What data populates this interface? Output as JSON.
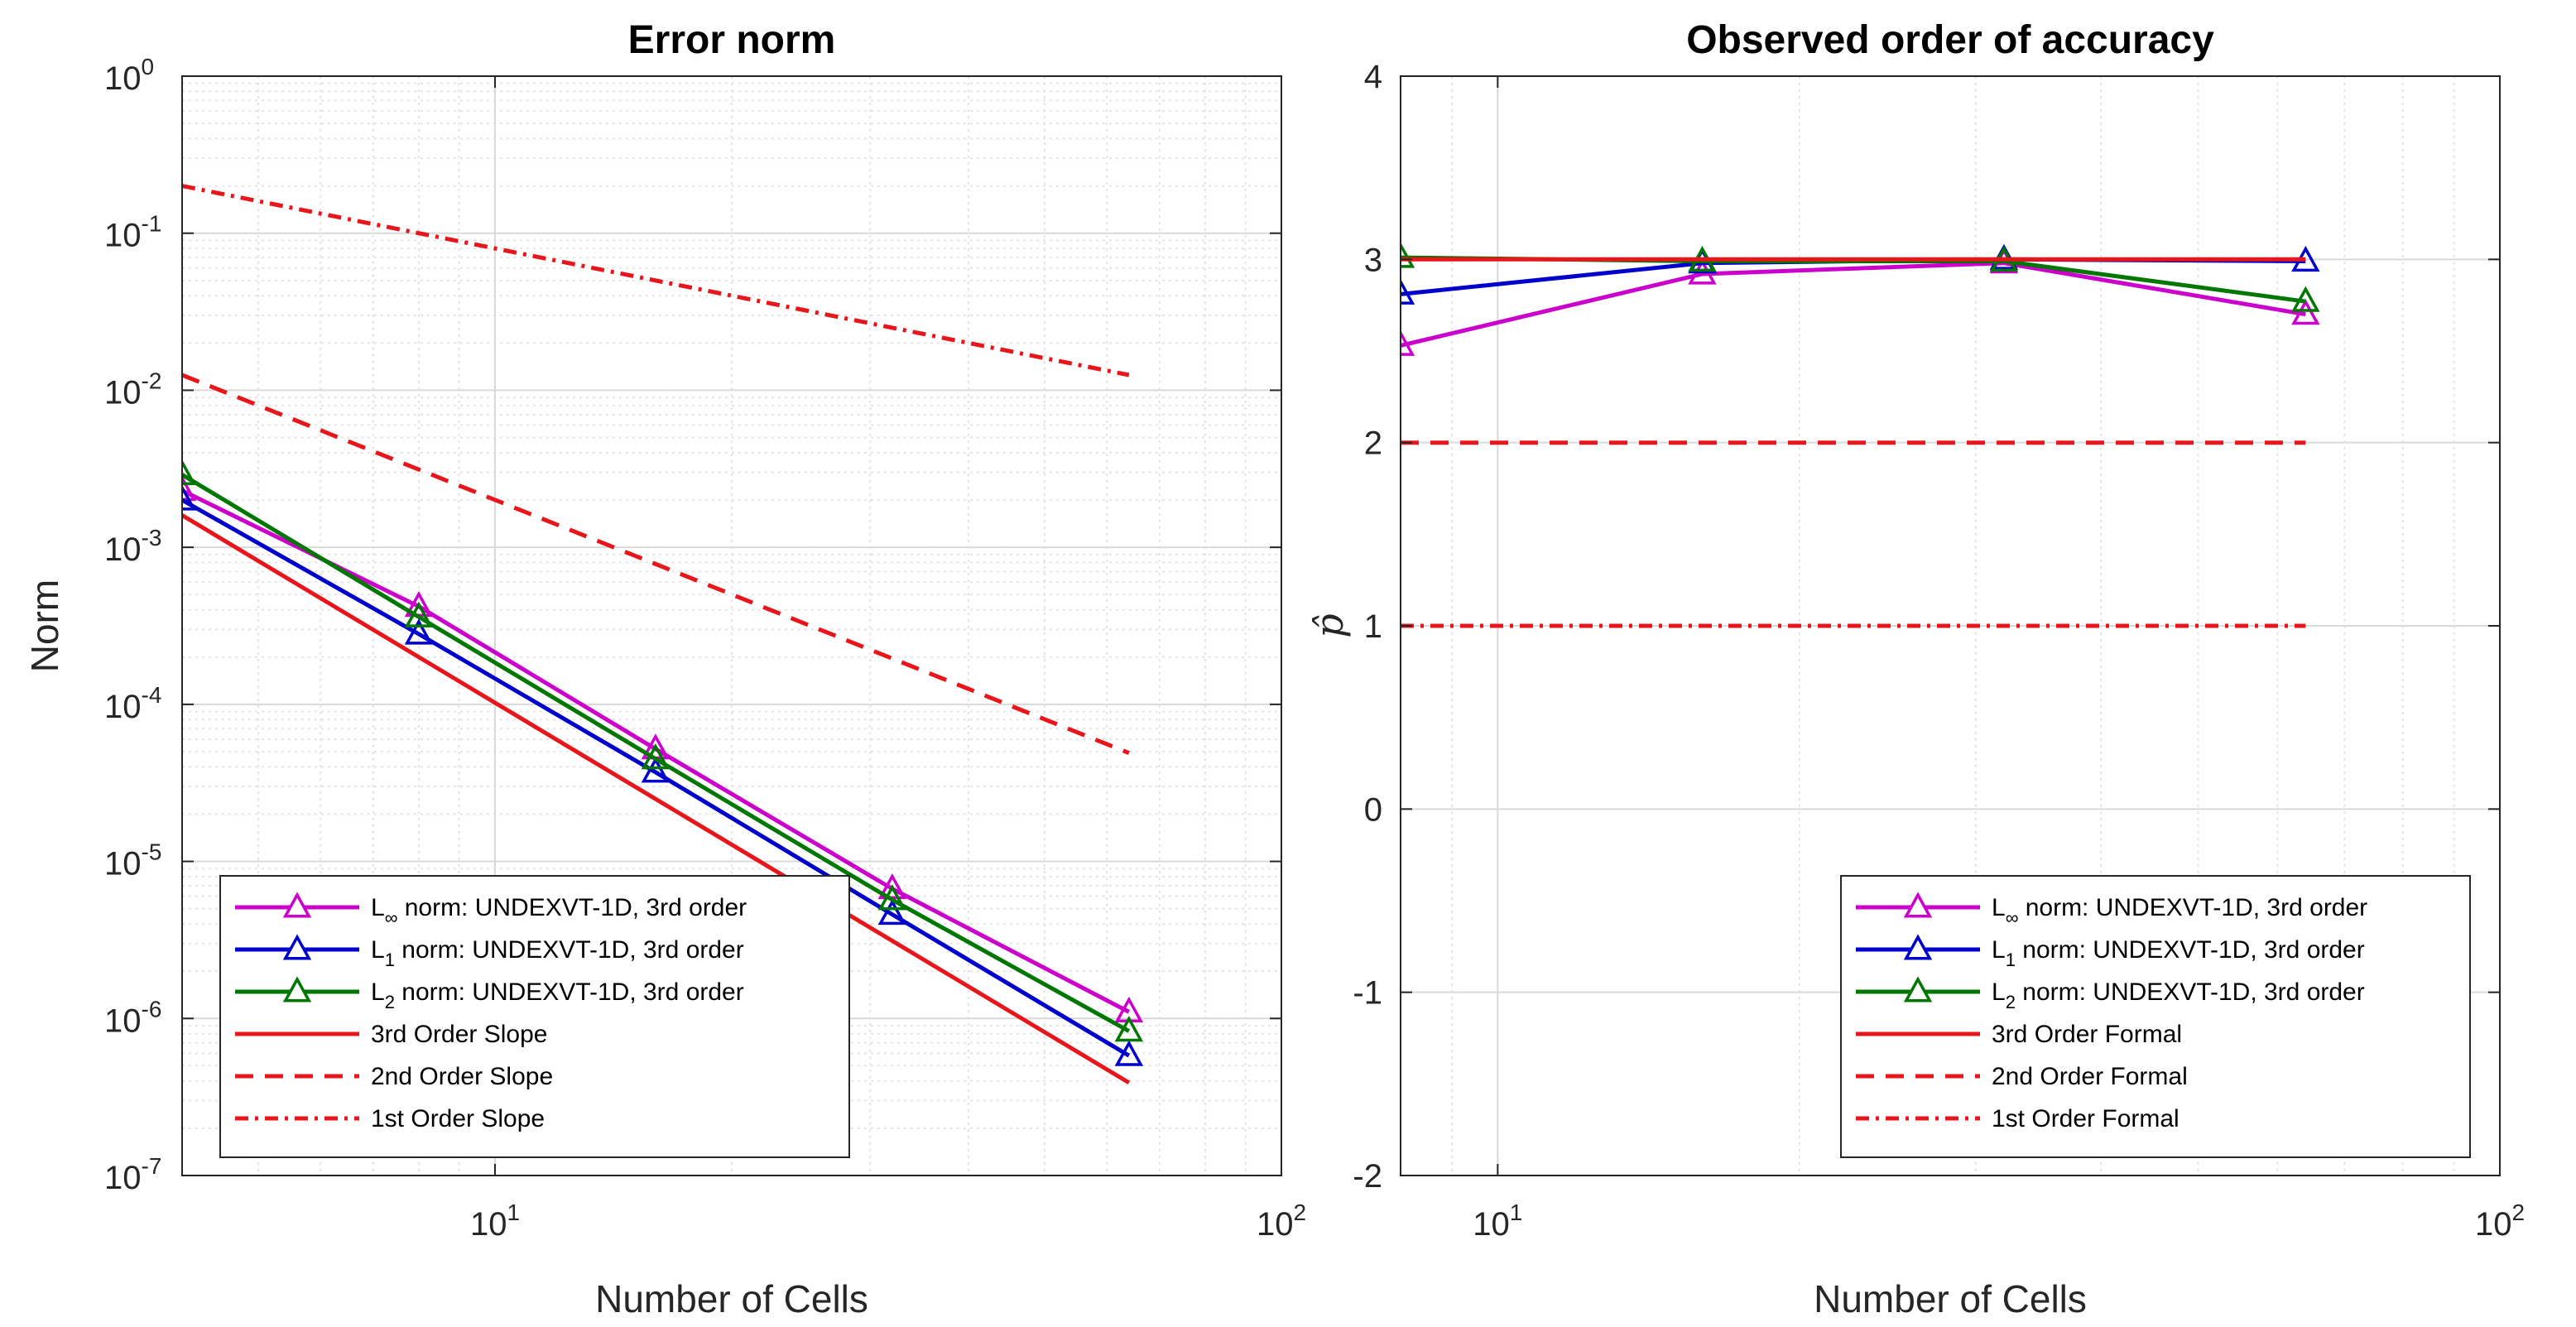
{
  "chart_data": [
    {
      "type": "line",
      "title": "Error norm",
      "xlabel": "Number of Cells",
      "ylabel": "Norm",
      "xscale": "log",
      "yscale": "log",
      "xlim": [
        4,
        100
      ],
      "ylim": [
        1e-07,
        1
      ],
      "grid": true,
      "minor_grid": true,
      "x_ticks": [
        {
          "value": 10,
          "base": "10",
          "exp": "1"
        },
        {
          "value": 100,
          "base": "10",
          "exp": "2"
        }
      ],
      "y_ticks": [
        {
          "value": 1e-07,
          "base": "10",
          "exp": "-7"
        },
        {
          "value": 1e-06,
          "base": "10",
          "exp": "-6"
        },
        {
          "value": 1e-05,
          "base": "10",
          "exp": "-5"
        },
        {
          "value": 0.0001,
          "base": "10",
          "exp": "-4"
        },
        {
          "value": 0.001,
          "base": "10",
          "exp": "-3"
        },
        {
          "value": 0.01,
          "base": "10",
          "exp": "-2"
        },
        {
          "value": 0.1,
          "base": "10",
          "exp": "-1"
        },
        {
          "value": 1,
          "base": "10",
          "exp": "0"
        }
      ],
      "legend_position": "bottom-left",
      "series": [
        {
          "name": "L∞ norm: UNDEXVT-1D, 3rd order",
          "label_main": "L",
          "label_sub": "∞",
          "label_rest": " norm: UNDEXVT-1D, 3rd order",
          "color": "#cc00cc",
          "dash": "solid",
          "marker": "triangle",
          "x": [
            4,
            8,
            16,
            32,
            64
          ],
          "y": [
            0.0023,
            0.00042,
            5.2e-05,
            6.7e-06,
            1.1e-06
          ]
        },
        {
          "name": "L1 norm: UNDEXVT-1D, 3rd order",
          "label_main": "L",
          "label_sub": "1",
          "label_rest": " norm: UNDEXVT-1D, 3rd order",
          "color": "#0000cc",
          "dash": "solid",
          "marker": "triangle",
          "x": [
            4,
            8,
            16,
            32,
            64
          ],
          "y": [
            0.002,
            0.00028,
            3.7e-05,
            4.6e-06,
            5.8e-07
          ]
        },
        {
          "name": "L2 norm: UNDEXVT-1D, 3rd order",
          "label_main": "L",
          "label_sub": "2",
          "label_rest": " norm: UNDEXVT-1D, 3rd order",
          "color": "#007700",
          "dash": "solid",
          "marker": "triangle",
          "x": [
            4,
            8,
            16,
            32,
            64
          ],
          "y": [
            0.0029,
            0.00036,
            4.5e-05,
            5.7e-06,
            8.3e-07
          ]
        },
        {
          "name": "3rd Order Slope",
          "label_main": "3rd Order Slope",
          "color": "#e8161a",
          "dash": "solid",
          "marker": "none",
          "x": [
            4,
            64
          ],
          "y": [
            0.0016,
            3.9e-07
          ]
        },
        {
          "name": "2nd Order Slope",
          "label_main": "2nd Order Slope",
          "color": "#e8161a",
          "dash": "dashed",
          "marker": "none",
          "x": [
            4,
            64
          ],
          "y": [
            0.0125,
            4.9e-05
          ]
        },
        {
          "name": "1st Order Slope",
          "label_main": "1st Order Slope",
          "color": "#e8161a",
          "dash": "dashdot",
          "marker": "none",
          "x": [
            4,
            64
          ],
          "y": [
            0.2,
            0.0125
          ]
        }
      ]
    },
    {
      "type": "line",
      "title": "Observed order of accuracy",
      "xlabel": "Number of Cells",
      "ylabel": "p̂",
      "xscale": "log",
      "yscale": "linear",
      "xlim": [
        8,
        100
      ],
      "ylim": [
        -2,
        4
      ],
      "grid": true,
      "minor_grid": true,
      "x_ticks": [
        {
          "value": 10,
          "base": "10",
          "exp": "1"
        },
        {
          "value": 100,
          "base": "10",
          "exp": "2"
        }
      ],
      "y_ticks": [
        {
          "value": -2,
          "label": "-2"
        },
        {
          "value": -1,
          "label": "-1"
        },
        {
          "value": 0,
          "label": "0"
        },
        {
          "value": 1,
          "label": "1"
        },
        {
          "value": 2,
          "label": "2"
        },
        {
          "value": 3,
          "label": "3"
        },
        {
          "value": 4,
          "label": "4"
        }
      ],
      "legend_position": "bottom-right",
      "series": [
        {
          "name": "L∞ norm: UNDEXVT-1D, 3rd order",
          "label_main": "L",
          "label_sub": "∞",
          "label_rest": " norm: UNDEXVT-1D, 3rd order",
          "color": "#cc00cc",
          "dash": "solid",
          "marker": "triangle",
          "x": [
            8,
            16,
            32,
            64
          ],
          "y": [
            2.53,
            2.92,
            2.98,
            2.7
          ]
        },
        {
          "name": "L1 norm: UNDEXVT-1D, 3rd order",
          "label_main": "L",
          "label_sub": "1",
          "label_rest": " norm: UNDEXVT-1D, 3rd order",
          "color": "#0000cc",
          "dash": "solid",
          "marker": "triangle",
          "x": [
            8,
            16,
            32,
            64
          ],
          "y": [
            2.81,
            2.98,
            3.0,
            2.99
          ]
        },
        {
          "name": "L2 norm: UNDEXVT-1D, 3rd order",
          "label_main": "L",
          "label_sub": "2",
          "label_rest": " norm: UNDEXVT-1D, 3rd order",
          "color": "#007700",
          "dash": "solid",
          "marker": "triangle",
          "x": [
            8,
            16,
            32,
            64
          ],
          "y": [
            3.01,
            2.99,
            2.99,
            2.77
          ]
        },
        {
          "name": "3rd Order Formal",
          "label_main": "3rd Order Formal",
          "color": "#e8161a",
          "dash": "solid",
          "marker": "none",
          "x": [
            8,
            64
          ],
          "y": [
            3,
            3
          ]
        },
        {
          "name": "2nd Order Formal",
          "label_main": "2nd Order Formal",
          "color": "#e8161a",
          "dash": "dashed",
          "marker": "none",
          "x": [
            8,
            64
          ],
          "y": [
            2,
            2
          ]
        },
        {
          "name": "1st Order Formal",
          "label_main": "1st Order Formal",
          "color": "#e8161a",
          "dash": "dashdot",
          "marker": "none",
          "x": [
            8,
            64
          ],
          "y": [
            1,
            1
          ]
        }
      ]
    }
  ]
}
